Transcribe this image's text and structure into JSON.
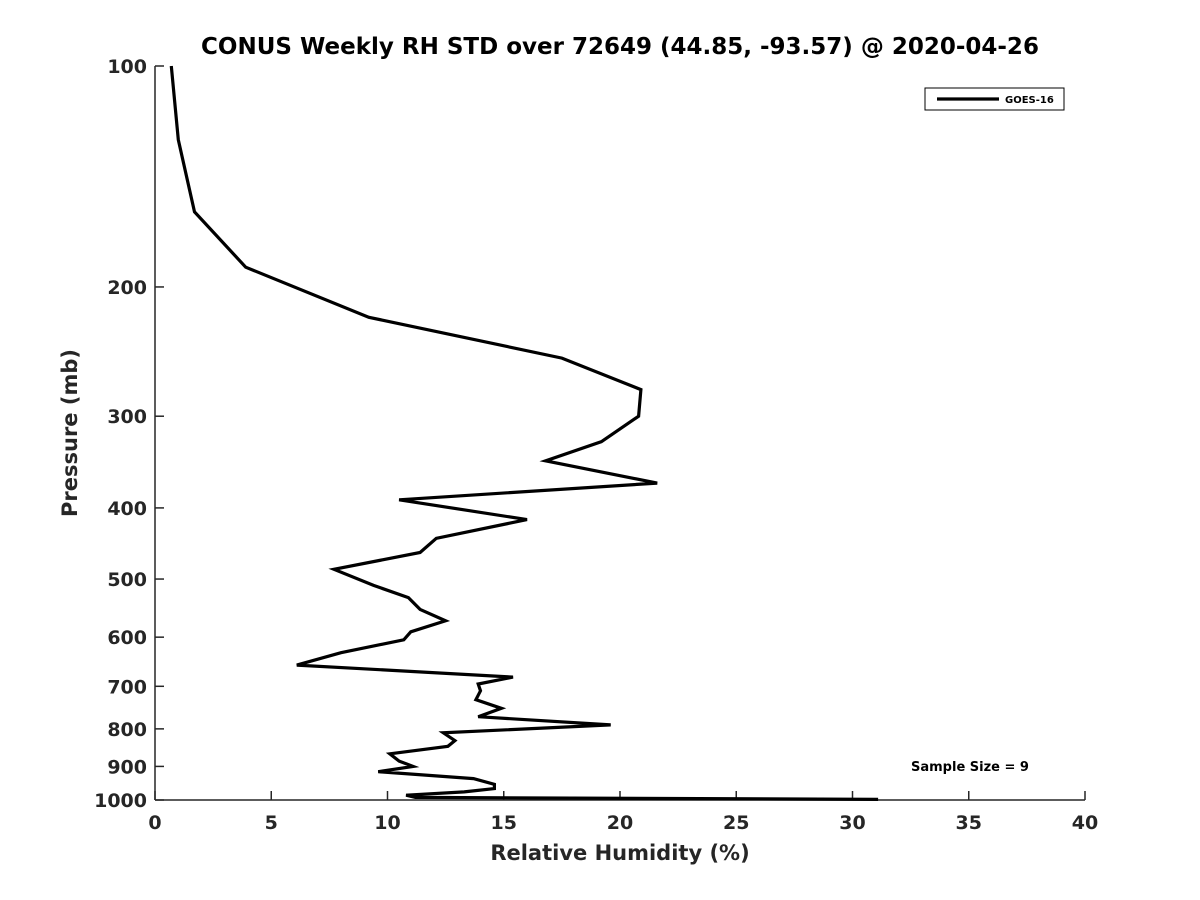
{
  "chart_data": {
    "type": "line",
    "title": "CONUS Weekly RH STD over 72649 (44.85, -93.57) @ 2020-04-26",
    "xlabel": "Relative Humidity (%)",
    "ylabel": "Pressure (mb)",
    "xlim": [
      0,
      40
    ],
    "ylim": [
      100,
      1000
    ],
    "yscale": "log",
    "yreversed": true,
    "x_ticks": [
      0,
      5,
      10,
      15,
      20,
      25,
      30,
      35,
      40
    ],
    "y_ticks": [
      100,
      200,
      300,
      400,
      500,
      600,
      700,
      800,
      900,
      1000
    ],
    "legend": {
      "position": "top-right",
      "entries": [
        "GOES-16"
      ]
    },
    "annotation": "Sample Size = 9",
    "series": [
      {
        "name": "GOES-16",
        "color": "#000000",
        "points": [
          [
            0.7,
            100
          ],
          [
            1.0,
            126
          ],
          [
            1.7,
            158
          ],
          [
            3.9,
            188
          ],
          [
            9.2,
            220
          ],
          [
            17.5,
            250
          ],
          [
            20.9,
            276
          ],
          [
            20.8,
            300
          ],
          [
            19.2,
            325
          ],
          [
            16.8,
            345
          ],
          [
            21.6,
            370
          ],
          [
            10.5,
            390
          ],
          [
            16.0,
            415
          ],
          [
            12.1,
            440
          ],
          [
            11.4,
            460
          ],
          [
            7.7,
            485
          ],
          [
            9.4,
            510
          ],
          [
            10.9,
            530
          ],
          [
            11.4,
            550
          ],
          [
            12.5,
            570
          ],
          [
            11.0,
            590
          ],
          [
            10.7,
            605
          ],
          [
            8.0,
            630
          ],
          [
            6.1,
            655
          ],
          [
            15.4,
            680
          ],
          [
            13.9,
            695
          ],
          [
            14.0,
            710
          ],
          [
            13.8,
            730
          ],
          [
            14.9,
            750
          ],
          [
            13.9,
            770
          ],
          [
            19.6,
            790
          ],
          [
            12.4,
            810
          ],
          [
            12.9,
            830
          ],
          [
            12.6,
            845
          ],
          [
            10.1,
            865
          ],
          [
            10.5,
            885
          ],
          [
            11.1,
            900
          ],
          [
            9.6,
            915
          ],
          [
            13.7,
            935
          ],
          [
            14.6,
            952
          ],
          [
            14.6,
            965
          ],
          [
            13.3,
            975
          ],
          [
            10.8,
            985
          ],
          [
            11.2,
            992
          ],
          [
            31.1,
            998
          ]
        ]
      }
    ]
  }
}
